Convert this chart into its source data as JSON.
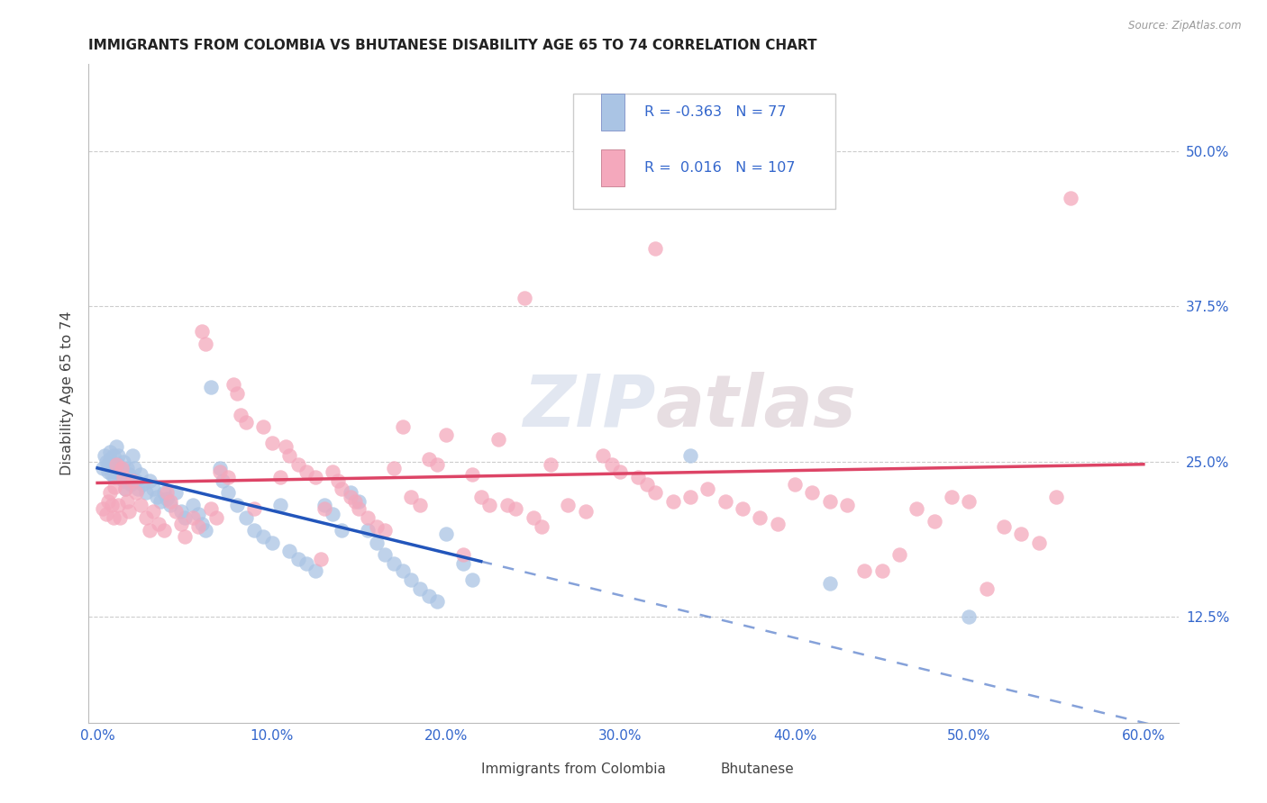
{
  "title": "IMMIGRANTS FROM COLOMBIA VS BHUTANESE DISABILITY AGE 65 TO 74 CORRELATION CHART",
  "source": "Source: ZipAtlas.com",
  "ylabel": "Disability Age 65 to 74",
  "xlabel_ticks": [
    "0.0%",
    "10.0%",
    "20.0%",
    "30.0%",
    "40.0%",
    "50.0%",
    "60.0%"
  ],
  "xlabel_values": [
    0.0,
    0.1,
    0.2,
    0.3,
    0.4,
    0.5,
    0.6
  ],
  "ylabel_ticks": [
    "12.5%",
    "25.0%",
    "37.5%",
    "50.0%"
  ],
  "ylabel_values": [
    0.125,
    0.25,
    0.375,
    0.5
  ],
  "xlim": [
    -0.005,
    0.62
  ],
  "ylim": [
    0.04,
    0.57
  ],
  "legend1_R": "-0.363",
  "legend1_N": "77",
  "legend2_R": "0.016",
  "legend2_N": "107",
  "color_colombia": "#aac4e4",
  "color_bhutanese": "#f4a8bc",
  "trend_colombia_color": "#2255bb",
  "trend_bhutanese_color": "#dd4466",
  "watermark": "ZIPatlas",
  "colombia_points": [
    [
      0.003,
      0.245
    ],
    [
      0.004,
      0.255
    ],
    [
      0.005,
      0.25
    ],
    [
      0.006,
      0.248
    ],
    [
      0.006,
      0.242
    ],
    [
      0.007,
      0.258
    ],
    [
      0.007,
      0.252
    ],
    [
      0.008,
      0.245
    ],
    [
      0.008,
      0.24
    ],
    [
      0.009,
      0.255
    ],
    [
      0.009,
      0.248
    ],
    [
      0.01,
      0.242
    ],
    [
      0.01,
      0.238
    ],
    [
      0.011,
      0.262
    ],
    [
      0.012,
      0.255
    ],
    [
      0.012,
      0.248
    ],
    [
      0.013,
      0.245
    ],
    [
      0.014,
      0.24
    ],
    [
      0.015,
      0.25
    ],
    [
      0.015,
      0.235
    ],
    [
      0.016,
      0.228
    ],
    [
      0.017,
      0.245
    ],
    [
      0.018,
      0.24
    ],
    [
      0.019,
      0.232
    ],
    [
      0.02,
      0.255
    ],
    [
      0.021,
      0.245
    ],
    [
      0.022,
      0.235
    ],
    [
      0.023,
      0.228
    ],
    [
      0.025,
      0.24
    ],
    [
      0.026,
      0.232
    ],
    [
      0.028,
      0.225
    ],
    [
      0.03,
      0.235
    ],
    [
      0.032,
      0.228
    ],
    [
      0.034,
      0.222
    ],
    [
      0.036,
      0.218
    ],
    [
      0.038,
      0.225
    ],
    [
      0.04,
      0.22
    ],
    [
      0.042,
      0.215
    ],
    [
      0.045,
      0.225
    ],
    [
      0.048,
      0.21
    ],
    [
      0.05,
      0.205
    ],
    [
      0.055,
      0.215
    ],
    [
      0.058,
      0.208
    ],
    [
      0.06,
      0.2
    ],
    [
      0.062,
      0.195
    ],
    [
      0.065,
      0.31
    ],
    [
      0.07,
      0.245
    ],
    [
      0.072,
      0.235
    ],
    [
      0.075,
      0.225
    ],
    [
      0.08,
      0.215
    ],
    [
      0.085,
      0.205
    ],
    [
      0.09,
      0.195
    ],
    [
      0.095,
      0.19
    ],
    [
      0.1,
      0.185
    ],
    [
      0.105,
      0.215
    ],
    [
      0.11,
      0.178
    ],
    [
      0.115,
      0.172
    ],
    [
      0.12,
      0.168
    ],
    [
      0.125,
      0.162
    ],
    [
      0.13,
      0.215
    ],
    [
      0.135,
      0.208
    ],
    [
      0.14,
      0.195
    ],
    [
      0.145,
      0.225
    ],
    [
      0.15,
      0.218
    ],
    [
      0.155,
      0.195
    ],
    [
      0.16,
      0.185
    ],
    [
      0.165,
      0.175
    ],
    [
      0.17,
      0.168
    ],
    [
      0.175,
      0.162
    ],
    [
      0.18,
      0.155
    ],
    [
      0.185,
      0.148
    ],
    [
      0.19,
      0.142
    ],
    [
      0.195,
      0.138
    ],
    [
      0.2,
      0.192
    ],
    [
      0.21,
      0.168
    ],
    [
      0.215,
      0.155
    ],
    [
      0.34,
      0.255
    ],
    [
      0.42,
      0.152
    ],
    [
      0.5,
      0.125
    ]
  ],
  "bhutanese_points": [
    [
      0.003,
      0.212
    ],
    [
      0.005,
      0.208
    ],
    [
      0.006,
      0.218
    ],
    [
      0.007,
      0.225
    ],
    [
      0.008,
      0.215
    ],
    [
      0.009,
      0.205
    ],
    [
      0.01,
      0.23
    ],
    [
      0.011,
      0.248
    ],
    [
      0.012,
      0.215
    ],
    [
      0.013,
      0.205
    ],
    [
      0.014,
      0.245
    ],
    [
      0.015,
      0.238
    ],
    [
      0.016,
      0.228
    ],
    [
      0.017,
      0.218
    ],
    [
      0.018,
      0.21
    ],
    [
      0.02,
      0.235
    ],
    [
      0.022,
      0.225
    ],
    [
      0.025,
      0.215
    ],
    [
      0.028,
      0.205
    ],
    [
      0.03,
      0.195
    ],
    [
      0.032,
      0.21
    ],
    [
      0.035,
      0.2
    ],
    [
      0.038,
      0.195
    ],
    [
      0.04,
      0.225
    ],
    [
      0.042,
      0.218
    ],
    [
      0.045,
      0.21
    ],
    [
      0.048,
      0.2
    ],
    [
      0.05,
      0.19
    ],
    [
      0.055,
      0.205
    ],
    [
      0.058,
      0.198
    ],
    [
      0.06,
      0.355
    ],
    [
      0.062,
      0.345
    ],
    [
      0.065,
      0.212
    ],
    [
      0.068,
      0.205
    ],
    [
      0.07,
      0.242
    ],
    [
      0.075,
      0.238
    ],
    [
      0.078,
      0.312
    ],
    [
      0.08,
      0.305
    ],
    [
      0.082,
      0.288
    ],
    [
      0.085,
      0.282
    ],
    [
      0.09,
      0.212
    ],
    [
      0.095,
      0.278
    ],
    [
      0.1,
      0.265
    ],
    [
      0.105,
      0.238
    ],
    [
      0.108,
      0.262
    ],
    [
      0.11,
      0.255
    ],
    [
      0.115,
      0.248
    ],
    [
      0.12,
      0.242
    ],
    [
      0.125,
      0.238
    ],
    [
      0.128,
      0.172
    ],
    [
      0.13,
      0.212
    ],
    [
      0.135,
      0.242
    ],
    [
      0.138,
      0.235
    ],
    [
      0.14,
      0.228
    ],
    [
      0.145,
      0.222
    ],
    [
      0.148,
      0.218
    ],
    [
      0.15,
      0.212
    ],
    [
      0.155,
      0.205
    ],
    [
      0.16,
      0.198
    ],
    [
      0.165,
      0.195
    ],
    [
      0.17,
      0.245
    ],
    [
      0.175,
      0.278
    ],
    [
      0.18,
      0.222
    ],
    [
      0.185,
      0.215
    ],
    [
      0.19,
      0.252
    ],
    [
      0.195,
      0.248
    ],
    [
      0.2,
      0.272
    ],
    [
      0.21,
      0.175
    ],
    [
      0.215,
      0.24
    ],
    [
      0.22,
      0.222
    ],
    [
      0.225,
      0.215
    ],
    [
      0.23,
      0.268
    ],
    [
      0.235,
      0.215
    ],
    [
      0.24,
      0.212
    ],
    [
      0.25,
      0.205
    ],
    [
      0.255,
      0.198
    ],
    [
      0.26,
      0.248
    ],
    [
      0.27,
      0.215
    ],
    [
      0.28,
      0.21
    ],
    [
      0.29,
      0.255
    ],
    [
      0.295,
      0.248
    ],
    [
      0.3,
      0.242
    ],
    [
      0.31,
      0.238
    ],
    [
      0.315,
      0.232
    ],
    [
      0.32,
      0.225
    ],
    [
      0.33,
      0.218
    ],
    [
      0.34,
      0.222
    ],
    [
      0.35,
      0.228
    ],
    [
      0.36,
      0.218
    ],
    [
      0.37,
      0.212
    ],
    [
      0.38,
      0.205
    ],
    [
      0.39,
      0.2
    ],
    [
      0.4,
      0.232
    ],
    [
      0.41,
      0.225
    ],
    [
      0.42,
      0.218
    ],
    [
      0.43,
      0.215
    ],
    [
      0.44,
      0.162
    ],
    [
      0.45,
      0.162
    ],
    [
      0.46,
      0.175
    ],
    [
      0.47,
      0.212
    ],
    [
      0.48,
      0.202
    ],
    [
      0.49,
      0.222
    ],
    [
      0.5,
      0.218
    ],
    [
      0.51,
      0.148
    ],
    [
      0.52,
      0.198
    ],
    [
      0.53,
      0.192
    ],
    [
      0.54,
      0.185
    ],
    [
      0.55,
      0.222
    ],
    [
      0.558,
      0.462
    ],
    [
      0.32,
      0.422
    ],
    [
      0.245,
      0.382
    ]
  ]
}
